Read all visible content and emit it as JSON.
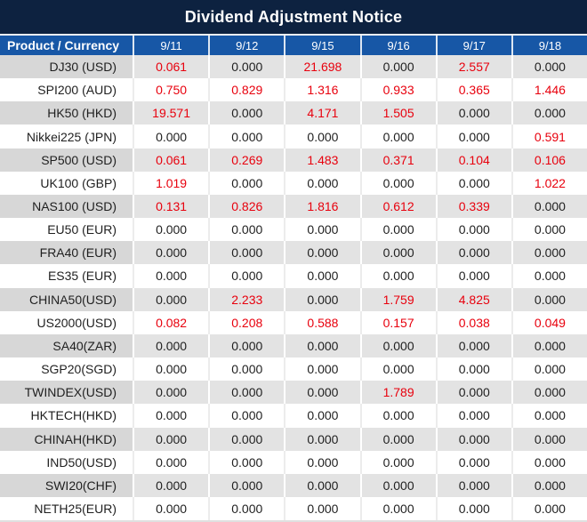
{
  "title": "Dividend Adjustment Notice",
  "table": {
    "columns": [
      "Product / Currency",
      "9/11",
      "9/12",
      "9/15",
      "9/16",
      "9/17",
      "9/18"
    ],
    "rows": [
      {
        "product": "DJ30 (USD)",
        "values": [
          "0.061",
          "0.000",
          "21.698",
          "0.000",
          "2.557",
          "0.000"
        ]
      },
      {
        "product": "SPI200 (AUD)",
        "values": [
          "0.750",
          "0.829",
          "1.316",
          "0.933",
          "0.365",
          "1.446"
        ]
      },
      {
        "product": "HK50 (HKD)",
        "values": [
          "19.571",
          "0.000",
          "4.171",
          "1.505",
          "0.000",
          "0.000"
        ]
      },
      {
        "product": "Nikkei225 (JPN)",
        "values": [
          "0.000",
          "0.000",
          "0.000",
          "0.000",
          "0.000",
          "0.591"
        ]
      },
      {
        "product": "SP500 (USD)",
        "values": [
          "0.061",
          "0.269",
          "1.483",
          "0.371",
          "0.104",
          "0.106"
        ]
      },
      {
        "product": "UK100 (GBP)",
        "values": [
          "1.019",
          "0.000",
          "0.000",
          "0.000",
          "0.000",
          "1.022"
        ]
      },
      {
        "product": "NAS100 (USD)",
        "values": [
          "0.131",
          "0.826",
          "1.816",
          "0.612",
          "0.339",
          "0.000"
        ]
      },
      {
        "product": "EU50 (EUR)",
        "values": [
          "0.000",
          "0.000",
          "0.000",
          "0.000",
          "0.000",
          "0.000"
        ]
      },
      {
        "product": "FRA40 (EUR)",
        "values": [
          "0.000",
          "0.000",
          "0.000",
          "0.000",
          "0.000",
          "0.000"
        ]
      },
      {
        "product": "ES35 (EUR)",
        "values": [
          "0.000",
          "0.000",
          "0.000",
          "0.000",
          "0.000",
          "0.000"
        ]
      },
      {
        "product": "CHINA50(USD)",
        "values": [
          "0.000",
          "2.233",
          "0.000",
          "1.759",
          "4.825",
          "0.000"
        ]
      },
      {
        "product": "US2000(USD)",
        "values": [
          "0.082",
          "0.208",
          "0.588",
          "0.157",
          "0.038",
          "0.049"
        ]
      },
      {
        "product": "SA40(ZAR)",
        "values": [
          "0.000",
          "0.000",
          "0.000",
          "0.000",
          "0.000",
          "0.000"
        ]
      },
      {
        "product": "SGP20(SGD)",
        "values": [
          "0.000",
          "0.000",
          "0.000",
          "0.000",
          "0.000",
          "0.000"
        ]
      },
      {
        "product": "TWINDEX(USD)",
        "values": [
          "0.000",
          "0.000",
          "0.000",
          "1.789",
          "0.000",
          "0.000"
        ]
      },
      {
        "product": "HKTECH(HKD)",
        "values": [
          "0.000",
          "0.000",
          "0.000",
          "0.000",
          "0.000",
          "0.000"
        ]
      },
      {
        "product": "CHINAH(HKD)",
        "values": [
          "0.000",
          "0.000",
          "0.000",
          "0.000",
          "0.000",
          "0.000"
        ]
      },
      {
        "product": "IND50(USD)",
        "values": [
          "0.000",
          "0.000",
          "0.000",
          "0.000",
          "0.000",
          "0.000"
        ]
      },
      {
        "product": "SWI20(CHF)",
        "values": [
          "0.000",
          "0.000",
          "0.000",
          "0.000",
          "0.000",
          "0.000"
        ]
      },
      {
        "product": "NETH25(EUR)",
        "values": [
          "0.000",
          "0.000",
          "0.000",
          "0.000",
          "0.000",
          "0.000"
        ]
      }
    ]
  },
  "colors": {
    "title_bar_bg": "#0d2240",
    "header_bg": "#1757a6",
    "header_text": "#ffffff",
    "zero_text": "#1f1f1f",
    "nonzero_text": "#e8000d",
    "row_alt_bg": "#e3e3e3",
    "row_alt_product_bg": "#d7d7d7",
    "row_bg": "#ffffff"
  }
}
